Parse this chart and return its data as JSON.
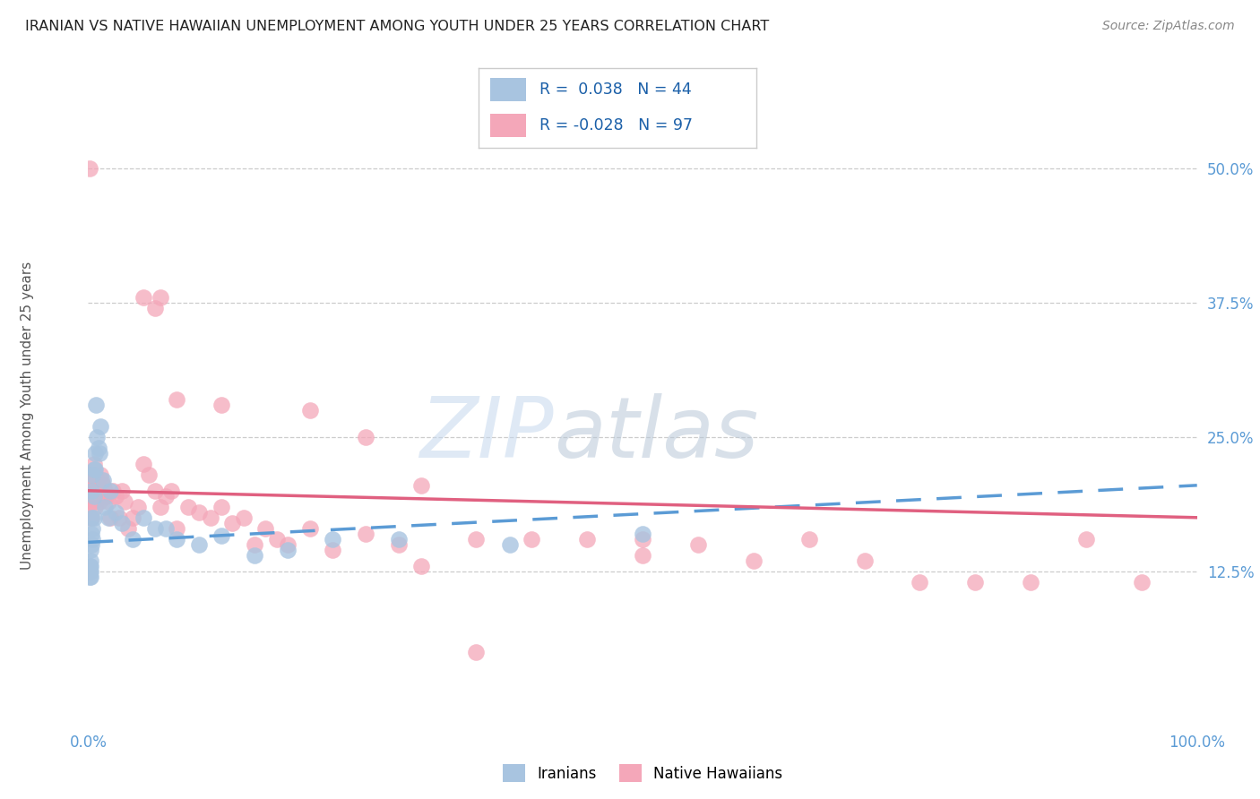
{
  "title": "IRANIAN VS NATIVE HAWAIIAN UNEMPLOYMENT AMONG YOUTH UNDER 25 YEARS CORRELATION CHART",
  "source": "Source: ZipAtlas.com",
  "ylabel": "Unemployment Among Youth under 25 years",
  "ytick_labels": [
    "12.5%",
    "25.0%",
    "37.5%",
    "50.0%"
  ],
  "ytick_values": [
    0.125,
    0.25,
    0.375,
    0.5
  ],
  "xlim": [
    0.0,
    1.0
  ],
  "ylim": [
    -0.02,
    0.56
  ],
  "legend_iranian": "Iranians",
  "legend_hawaiian": "Native Hawaiians",
  "R_iranian": "0.038",
  "N_iranian": "44",
  "R_hawaiian": "-0.028",
  "N_hawaiian": "97",
  "color_iranian": "#a8c4e0",
  "color_hawaiian": "#f4a7b9",
  "line_color_iranian": "#5b9bd5",
  "line_color_hawaiian": "#e06080",
  "watermark_color": "#c8d8e8",
  "background_color": "#ffffff",
  "iranian_x": [
    0.001,
    0.001,
    0.001,
    0.002,
    0.002,
    0.002,
    0.002,
    0.002,
    0.003,
    0.003,
    0.003,
    0.003,
    0.004,
    0.004,
    0.004,
    0.005,
    0.005,
    0.005,
    0.006,
    0.006,
    0.007,
    0.008,
    0.009,
    0.01,
    0.011,
    0.013,
    0.015,
    0.018,
    0.02,
    0.025,
    0.03,
    0.04,
    0.05,
    0.06,
    0.07,
    0.08,
    0.1,
    0.12,
    0.15,
    0.18,
    0.22,
    0.28,
    0.38,
    0.5
  ],
  "iranian_y": [
    0.13,
    0.125,
    0.12,
    0.145,
    0.135,
    0.13,
    0.125,
    0.12,
    0.2,
    0.175,
    0.16,
    0.15,
    0.215,
    0.165,
    0.155,
    0.22,
    0.195,
    0.175,
    0.235,
    0.22,
    0.28,
    0.25,
    0.24,
    0.235,
    0.26,
    0.21,
    0.185,
    0.175,
    0.2,
    0.18,
    0.17,
    0.155,
    0.175,
    0.165,
    0.165,
    0.155,
    0.15,
    0.158,
    0.14,
    0.145,
    0.155,
    0.155,
    0.15,
    0.16
  ],
  "hawaiian_x": [
    0.001,
    0.001,
    0.001,
    0.001,
    0.001,
    0.002,
    0.002,
    0.002,
    0.002,
    0.002,
    0.002,
    0.002,
    0.003,
    0.003,
    0.003,
    0.003,
    0.003,
    0.003,
    0.004,
    0.004,
    0.004,
    0.004,
    0.005,
    0.005,
    0.005,
    0.005,
    0.006,
    0.006,
    0.006,
    0.007,
    0.007,
    0.008,
    0.008,
    0.009,
    0.01,
    0.01,
    0.011,
    0.012,
    0.013,
    0.014,
    0.015,
    0.016,
    0.018,
    0.02,
    0.022,
    0.025,
    0.028,
    0.03,
    0.033,
    0.036,
    0.04,
    0.045,
    0.05,
    0.055,
    0.06,
    0.065,
    0.07,
    0.075,
    0.08,
    0.09,
    0.1,
    0.11,
    0.12,
    0.13,
    0.14,
    0.15,
    0.16,
    0.17,
    0.18,
    0.2,
    0.22,
    0.25,
    0.28,
    0.3,
    0.35,
    0.4,
    0.45,
    0.5,
    0.55,
    0.6,
    0.65,
    0.7,
    0.75,
    0.8,
    0.85,
    0.9,
    0.95,
    0.05,
    0.06,
    0.065,
    0.08,
    0.12,
    0.2,
    0.25,
    0.3,
    0.35,
    0.5
  ],
  "hawaiian_y": [
    0.5,
    0.215,
    0.215,
    0.2,
    0.19,
    0.2,
    0.2,
    0.215,
    0.2,
    0.2,
    0.19,
    0.175,
    0.215,
    0.215,
    0.2,
    0.2,
    0.19,
    0.175,
    0.215,
    0.21,
    0.2,
    0.19,
    0.225,
    0.215,
    0.2,
    0.19,
    0.215,
    0.2,
    0.185,
    0.205,
    0.195,
    0.21,
    0.195,
    0.2,
    0.2,
    0.19,
    0.215,
    0.21,
    0.205,
    0.195,
    0.2,
    0.195,
    0.19,
    0.175,
    0.2,
    0.195,
    0.175,
    0.2,
    0.19,
    0.165,
    0.175,
    0.185,
    0.225,
    0.215,
    0.2,
    0.185,
    0.195,
    0.2,
    0.165,
    0.185,
    0.18,
    0.175,
    0.185,
    0.17,
    0.175,
    0.15,
    0.165,
    0.155,
    0.15,
    0.165,
    0.145,
    0.16,
    0.15,
    0.13,
    0.155,
    0.155,
    0.155,
    0.155,
    0.15,
    0.135,
    0.155,
    0.135,
    0.115,
    0.115,
    0.115,
    0.155,
    0.115,
    0.38,
    0.37,
    0.38,
    0.285,
    0.28,
    0.275,
    0.25,
    0.205,
    0.05,
    0.14
  ]
}
